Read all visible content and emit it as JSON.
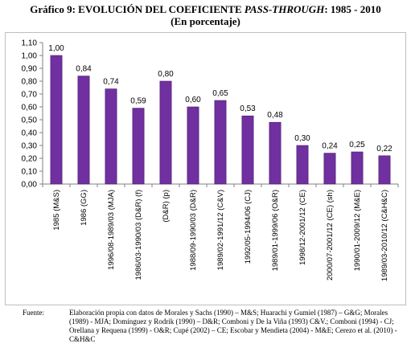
{
  "title": {
    "prefix": "Gráfico 9:",
    "main": "EVOLUCIÓN DEL COEFICIENTE",
    "italic": "PASS-THROUGH",
    "suffix": ": 1985 - 2010",
    "subtitle": "(En porcentaje)"
  },
  "chart_data": {
    "type": "bar",
    "categories": [
      "1985 (M&S)",
      "1986 (GG)",
      "1996/08-1989/03 (MJA)",
      "1986/03-1990/03 (D&R) (f)",
      "(D&R) (p)",
      "1988/09-1990/03 (D&R)",
      "1989/02-1991/12 (C&V)",
      "1992/05-1994/06 (CJ)",
      "1989/01-1999/06 (O&R)",
      "1998/12-2001/12 (CE)",
      "2000/07-2001/12 (CE) (sh)",
      "1990/01-2009/12 (M&E)",
      "1989/03-2010/12 (C&H&C)"
    ],
    "values": [
      1.0,
      0.84,
      0.74,
      0.59,
      0.8,
      0.6,
      0.65,
      0.53,
      0.48,
      0.3,
      0.24,
      0.25,
      0.22
    ],
    "value_labels": [
      "1,00",
      "0,84",
      "0,74",
      "0,59",
      "0,80",
      "0,60",
      "0,65",
      "0,53",
      "0,48",
      "0,30",
      "0,24",
      "0,25",
      "0,22"
    ],
    "yticks": [
      "0,00",
      "0,10",
      "0,20",
      "0,30",
      "0,40",
      "0,50",
      "0,60",
      "0,70",
      "0,80",
      "0,90",
      "1,00",
      "1,10"
    ],
    "ylim": [
      0,
      1.1
    ],
    "grid": false,
    "bar_color": "#7030A0",
    "bar_edge_color": "#4b1c6e"
  },
  "source": {
    "label": "Fuente:",
    "text": "Elaboración propia con datos de Morales y Sachs (1990) – M&S; Huarachi y Gumiel (1987) – G&G; Morales (1989) - MJA; Domínguez y Rodrik (1990) – D&R; Comboni y De la Viña (1993) C&V.; Comboni (1994) - CJ; Orellana y Requena (1999) - O&R; Cupé (2002) – CE; Escobar y Mendieta (2004) - M&E; Cerezo et al. (2010) - C&H&C"
  }
}
